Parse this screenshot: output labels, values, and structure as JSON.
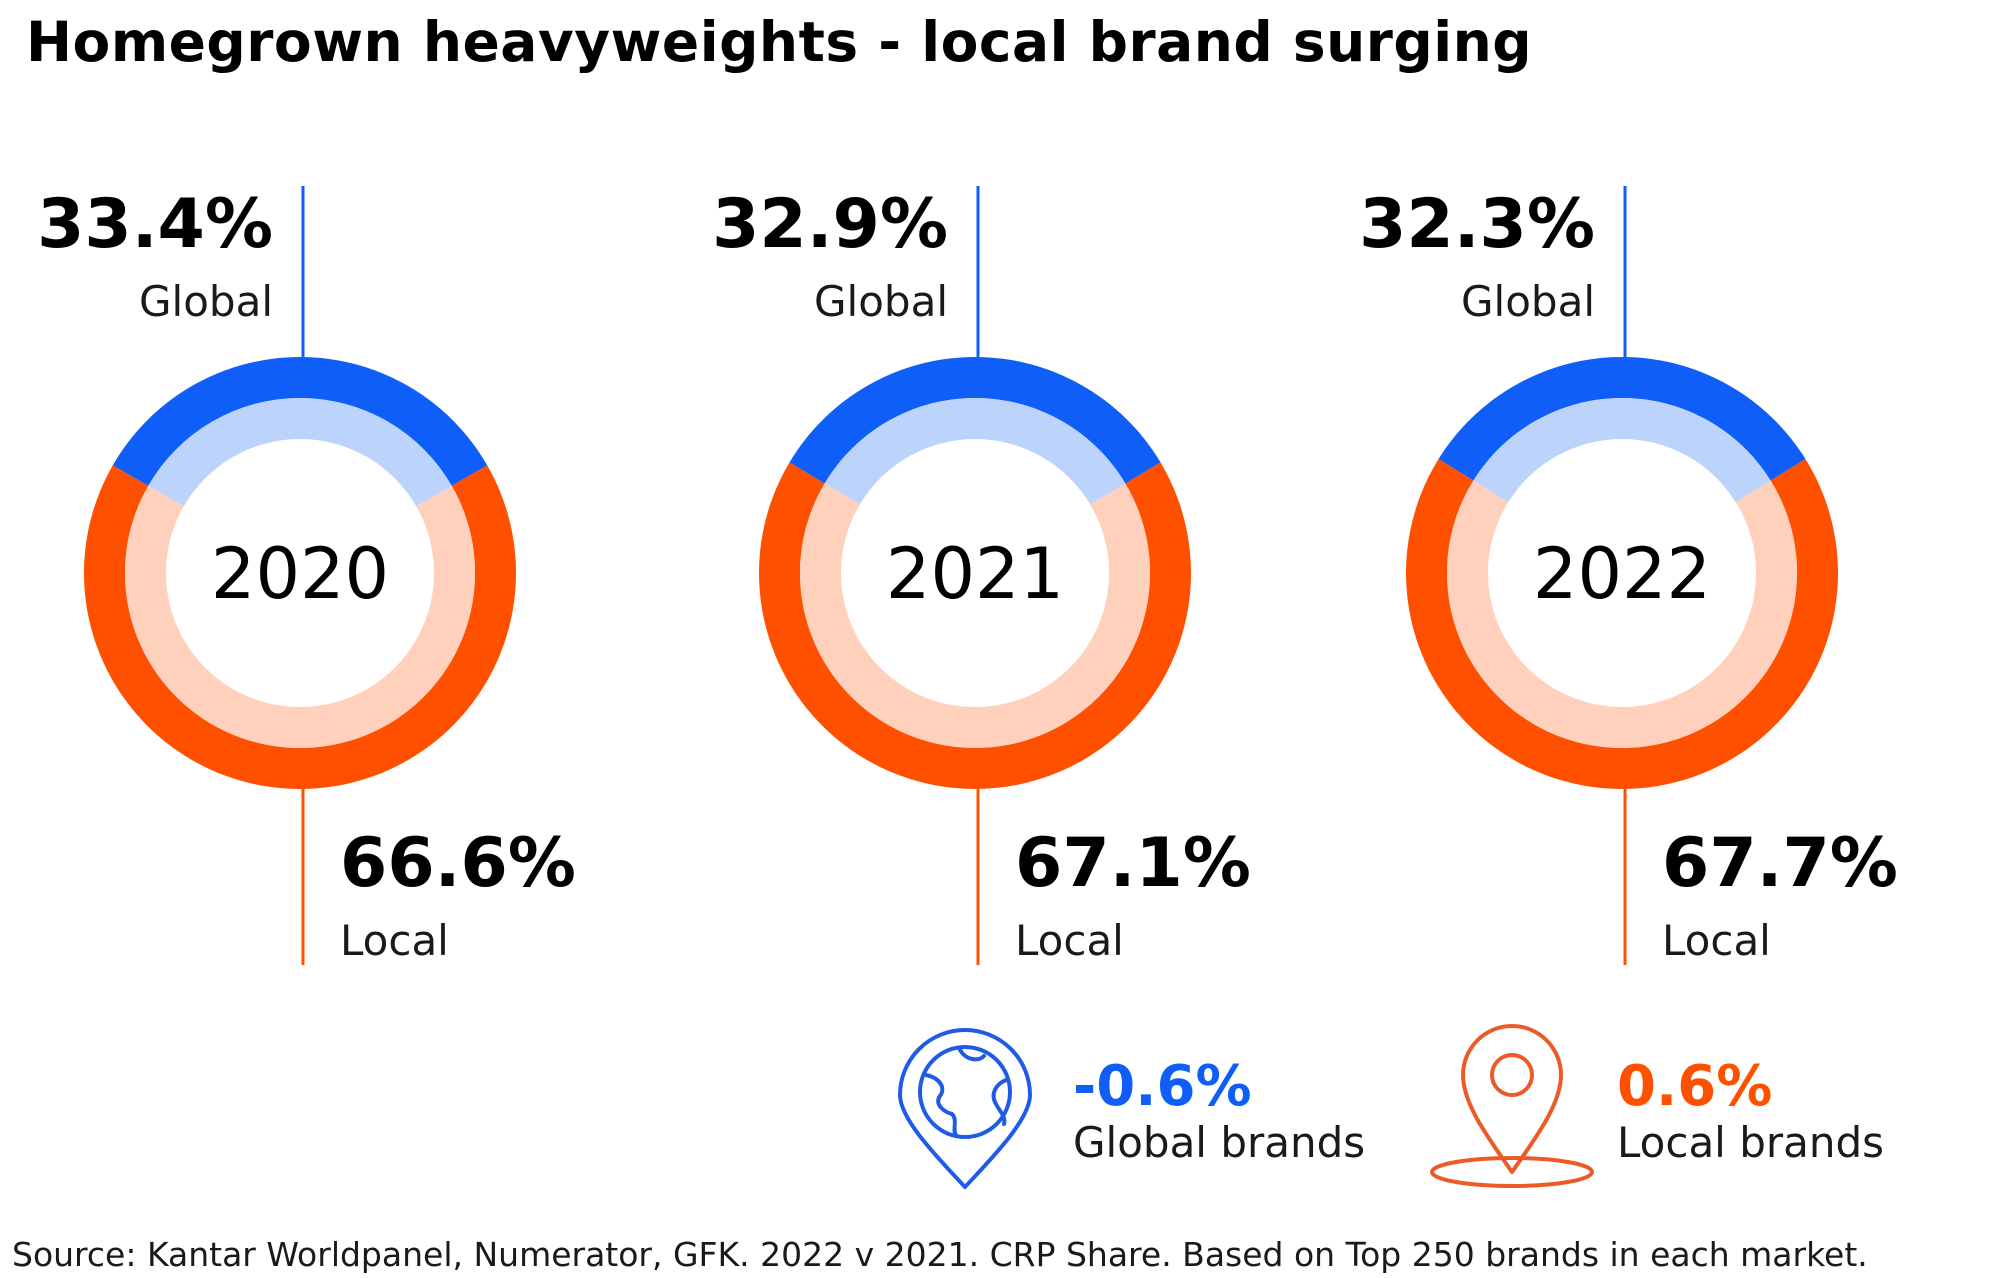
{
  "title": "Homegrown heavyweights - local brand surging",
  "source": "Source: Kantar Worldpanel, Numerator, GFK. 2022 v 2021. CRP Share. Based on Top 250 brands in each market.",
  "colors": {
    "global": "#0f5ef7",
    "global_light": "#bcd3fc",
    "local": "#ff5000",
    "local_light": "#ffd1bd",
    "global_icon": "#1f5be6",
    "local_icon": "#ec5a26"
  },
  "chart_data": {
    "type": "donut",
    "categories": [
      "2020",
      "2021",
      "2022"
    ],
    "series": [
      {
        "name": "Global",
        "values": [
          33.4,
          32.9,
          32.3
        ],
        "labels": [
          "33.4%",
          "32.9%",
          "32.3%"
        ]
      },
      {
        "name": "Local",
        "values": [
          66.6,
          67.1,
          67.7
        ],
        "labels": [
          "66.6%",
          "67.1%",
          "67.7%"
        ]
      }
    ]
  },
  "changes": [
    {
      "value": "-0.6%",
      "label": "Global brands",
      "icon": "globe-pin-icon"
    },
    {
      "value": "0.6%",
      "label": "Local brands",
      "icon": "location-pin-icon"
    }
  ]
}
